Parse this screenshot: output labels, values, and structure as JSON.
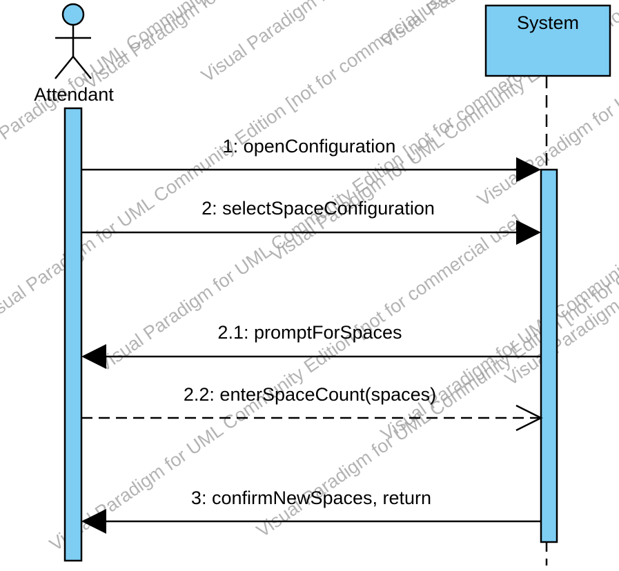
{
  "diagram": {
    "type": "sequence",
    "actor": {
      "label": "Attendant",
      "icon": "stick-figure-icon"
    },
    "system": {
      "label": "System"
    },
    "messages": [
      {
        "label": "1: openConfiguration",
        "direction": "to-system",
        "style": "sync"
      },
      {
        "label": "2: selectSpaceConfiguration",
        "direction": "to-system",
        "style": "sync"
      },
      {
        "label": "2.1: promptForSpaces",
        "direction": "to-actor",
        "style": "sync"
      },
      {
        "label": "2.2: enterSpaceCount(spaces)",
        "direction": "to-system",
        "style": "reply"
      },
      {
        "label": "3: confirmNewSpaces, return",
        "direction": "to-actor",
        "style": "sync"
      }
    ],
    "watermarks": [
      "Visual Paradigm for UML Community Edition [not for commercial use]"
    ]
  },
  "colors": {
    "activation_fill": "#7ecef4",
    "actor_head_fill": "#7ecef4",
    "system_box_fill": "#7ecef4",
    "stroke": "#000000",
    "watermark": "#9a9a9a"
  }
}
